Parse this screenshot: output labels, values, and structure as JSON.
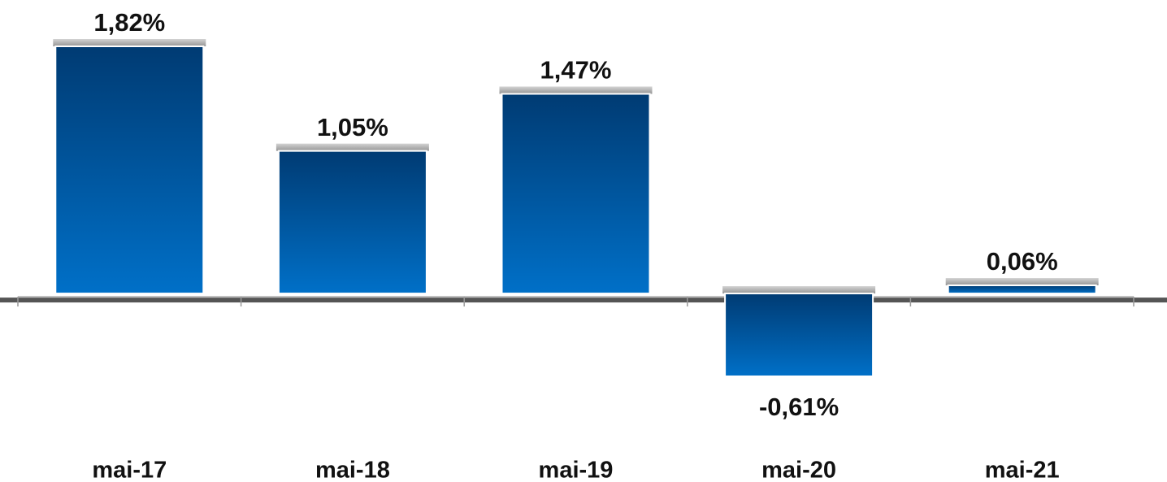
{
  "chart_data": {
    "type": "bar",
    "categories": [
      "mai-17",
      "mai-18",
      "mai-19",
      "mai-20",
      "mai-21"
    ],
    "values": [
      1.82,
      1.05,
      1.47,
      -0.61,
      0.06
    ],
    "value_labels": [
      "1,82%",
      "1,05%",
      "1,47%",
      "-0,61%",
      "0,06%"
    ],
    "color": "#0070c8"
  }
}
